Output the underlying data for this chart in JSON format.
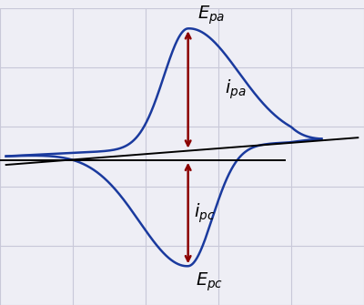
{
  "background_color": "#eeeef5",
  "grid_color": "#c8c8d8",
  "curve_color": "#1a3a9e",
  "baseline_color": "#000000",
  "arrow_color": "#8b0000",
  "curve_linewidth": 1.8,
  "baseline_linewidth": 1.4,
  "figsize": [
    4.0,
    3.35
  ],
  "dpi": 100,
  "xlim": [
    -1.6,
    1.4
  ],
  "ylim": [
    -1.3,
    1.2
  ],
  "E0": 0.0,
  "label_fontsize": 14
}
